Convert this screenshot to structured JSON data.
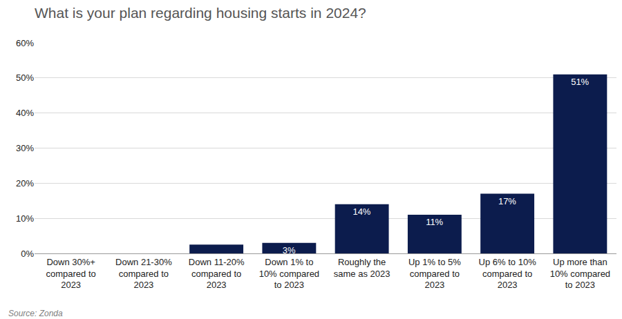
{
  "chart_data": {
    "type": "bar",
    "title": "What is your plan regarding housing starts in 2024?",
    "source": "Source: Zonda",
    "categories": [
      "Down 30%+ compared to 2023",
      "Down 21-30% compared to 2023",
      "Down 11-20% compared to 2023",
      "Down 1% to 10% compared to 2023",
      "Roughly the same as 2023",
      "Up 1% to 5% compared to 2023",
      "Up 6% to 10% compared to 2023",
      "Up more than 10% compared to 2023"
    ],
    "values": [
      0,
      0,
      2.5,
      3,
      14,
      11,
      17,
      51
    ],
    "value_labels": [
      null,
      null,
      null,
      "3%",
      "14%",
      "11%",
      "17%",
      "51%"
    ],
    "color": "#0c1c4d",
    "data_labels": true,
    "ylim": [
      0,
      60
    ],
    "yticks": [
      {
        "value": 0,
        "label": "0%"
      },
      {
        "value": 10,
        "label": "10%"
      },
      {
        "value": 20,
        "label": "20%"
      },
      {
        "value": 30,
        "label": "30%"
      },
      {
        "value": 40,
        "label": "40%"
      },
      {
        "value": 50,
        "label": "50%"
      },
      {
        "value": 60,
        "label": "60%"
      }
    ],
    "grid": true
  }
}
